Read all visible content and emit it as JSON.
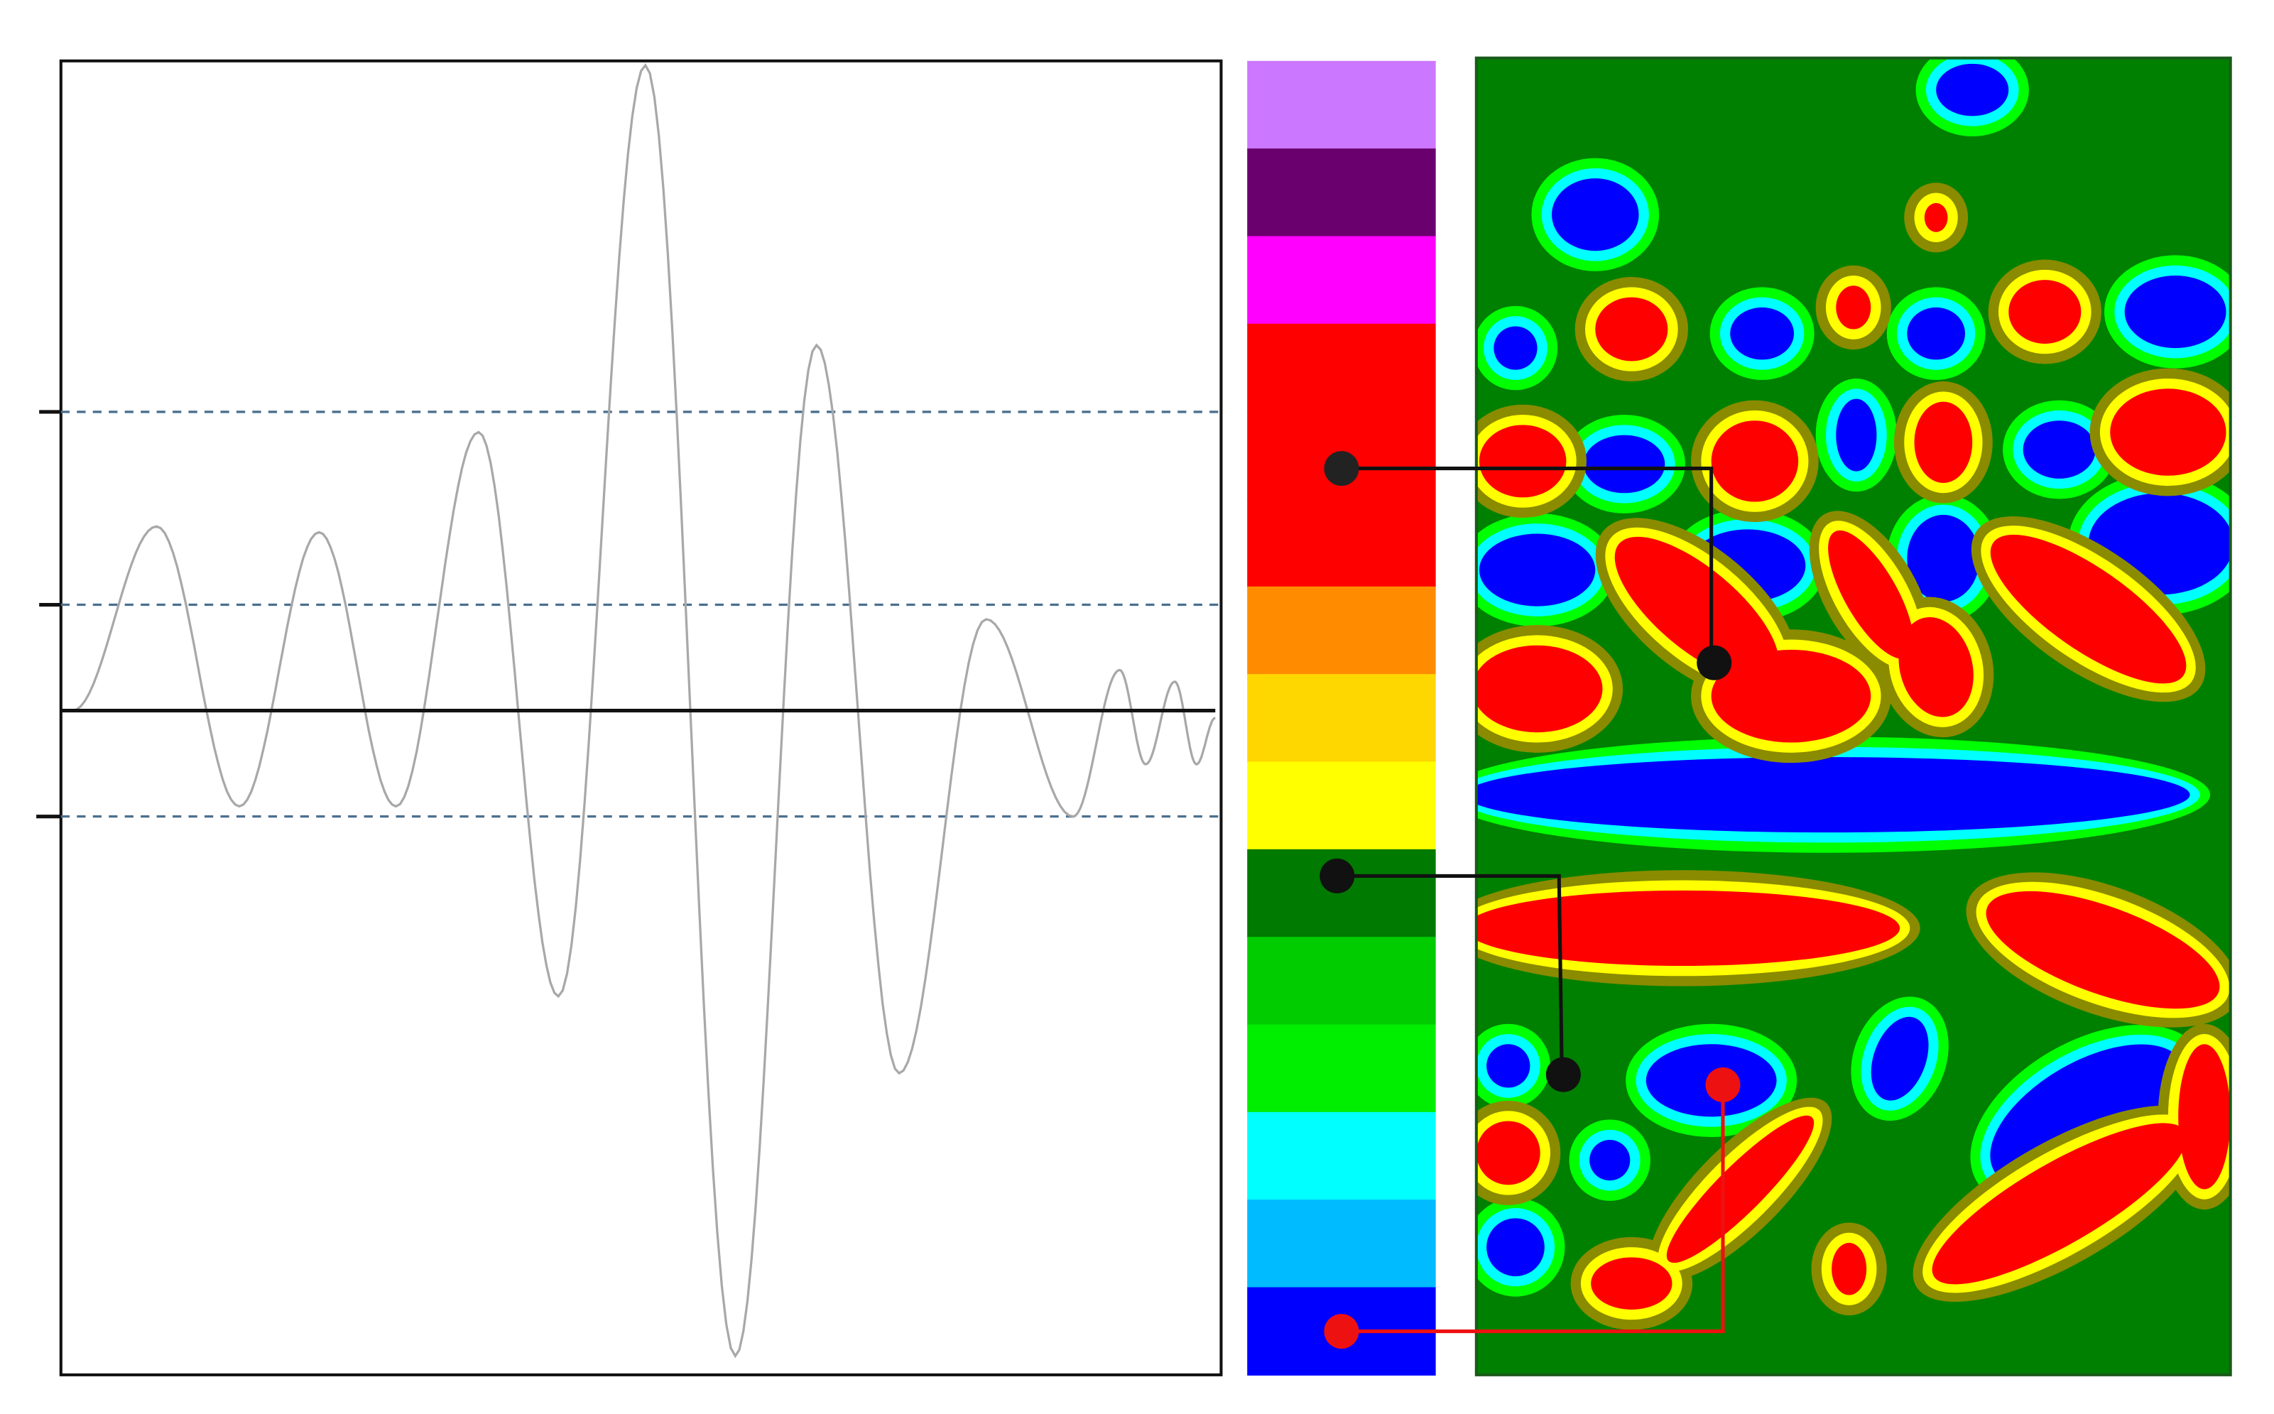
{
  "colorbar": {
    "colors": [
      "#cc77ff",
      "#6a006e",
      "#ff00ff",
      "#ff0000",
      "#ff0000",
      "#ff0000",
      "#ff8c00",
      "#ffd700",
      "#ffff00",
      "#007a00",
      "#00cc00",
      "#00ee00",
      "#00ffff",
      "#00bbff",
      "#0000ff"
    ]
  }
}
